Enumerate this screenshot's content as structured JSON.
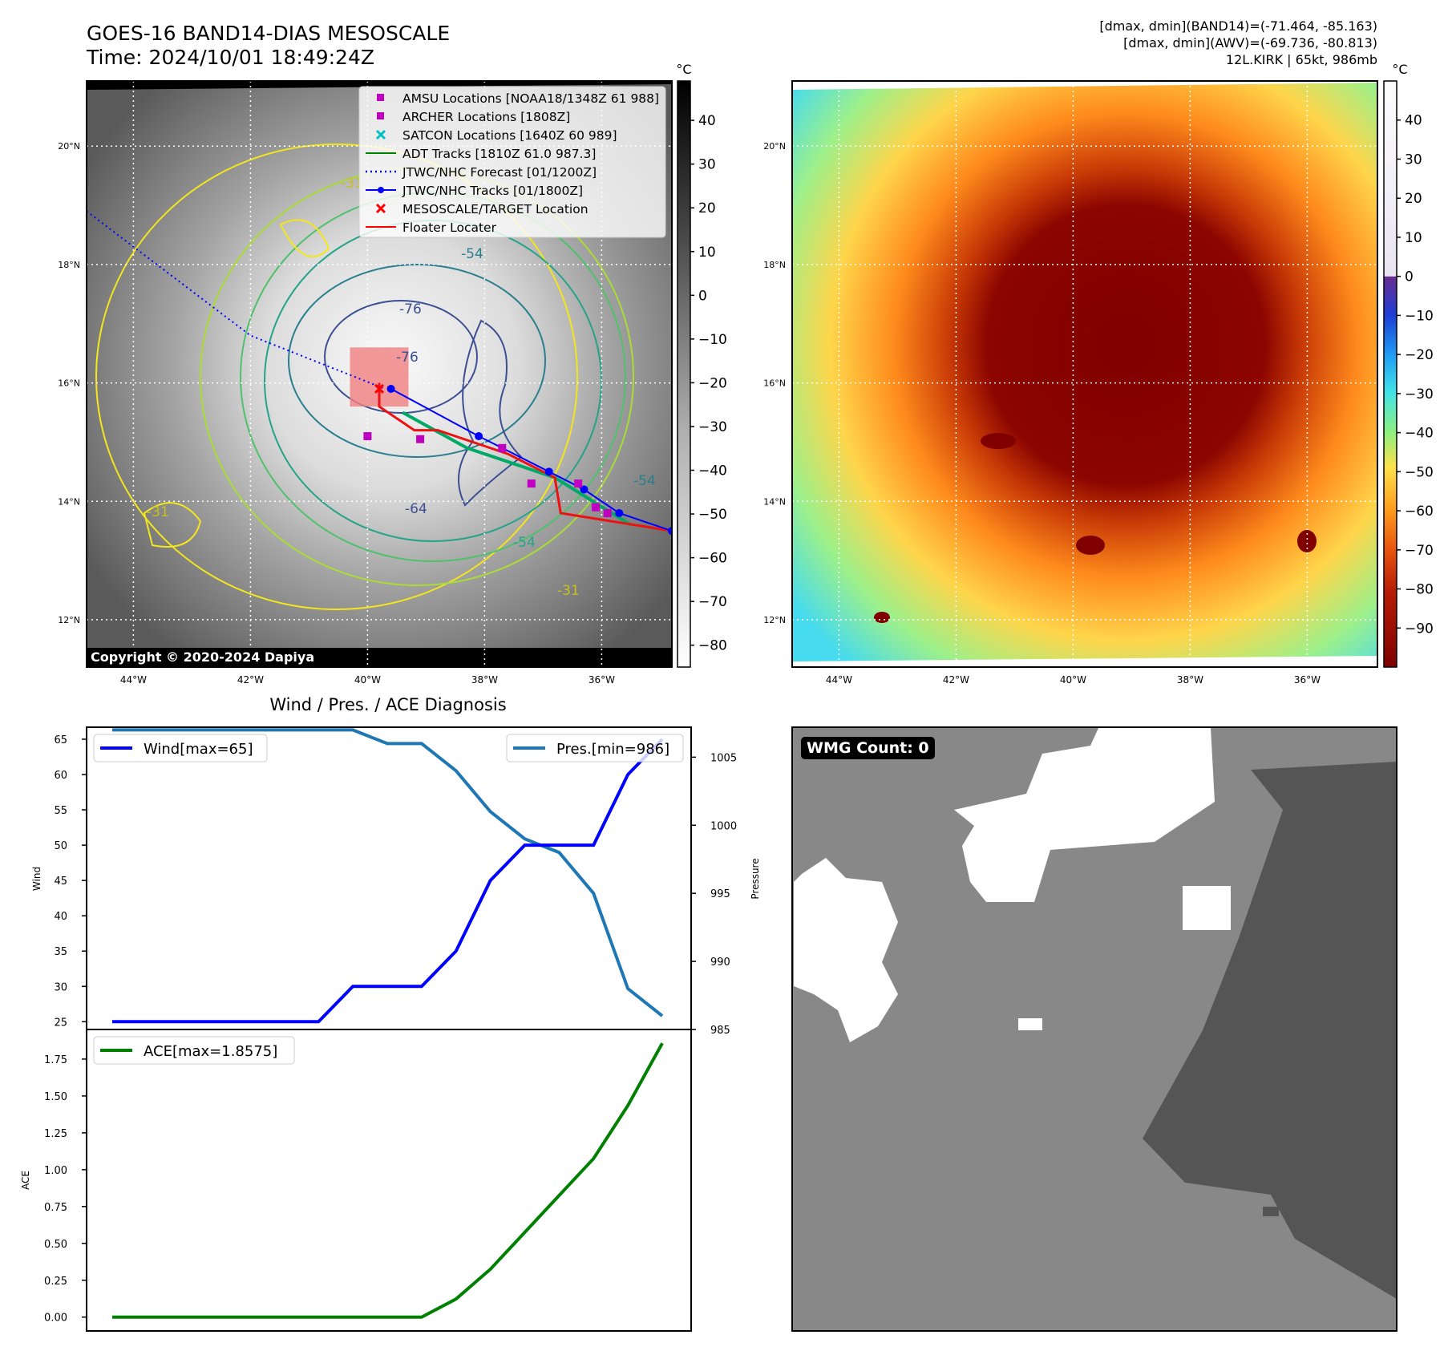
{
  "header": {
    "title": "GOES-16 BAND14-DIAS MESOSCALE",
    "time": "Time: 2024/10/01 18:49:24Z",
    "dmax_band14": "[dmax, dmin](BAND14)=(-71.464, -85.163)",
    "dmax_awv": "[dmax, dmin](AWV)=(-69.736, -80.813)",
    "storm": "12L.KIRK | 65kt, 986mb"
  },
  "copyright": "Copyright © 2020-2024 Dapiya",
  "map": {
    "lat_labels": [
      "20°N",
      "18°N",
      "16°N",
      "14°N",
      "12°N"
    ],
    "lat_values": [
      20,
      18,
      16,
      14,
      12
    ],
    "lon_labels": [
      "44°W",
      "42°W",
      "40°W",
      "38°W",
      "36°W"
    ],
    "lon_values": [
      -44,
      -42,
      -40,
      -38,
      -36
    ],
    "lat_range": [
      11.2,
      21.1
    ],
    "lon_range": [
      -44.8,
      -34.8
    ],
    "contour_labels": [
      "-31",
      "-54",
      "-76",
      "-64",
      "-54",
      "-31",
      "-54",
      "-31",
      "-76"
    ],
    "legend": [
      {
        "label": "AMSU Locations [NOAA18/1348Z 61 988]",
        "color": "#c000c0",
        "marker": "square"
      },
      {
        "label": "ARCHER Locations [1808Z]",
        "color": "#c000c0",
        "marker": "square"
      },
      {
        "label": "SATCON Locations [1640Z 60 989]",
        "color": "#00c0c0",
        "marker": "x"
      },
      {
        "label": "ADT Tracks [1810Z 61.0 987.3]",
        "color": "#008000",
        "marker": "line"
      },
      {
        "label": "JTWC/NHC Forecast [01/1200Z]",
        "color": "#0000ff",
        "marker": "dotted"
      },
      {
        "label": "JTWC/NHC Tracks [01/1800Z]",
        "color": "#0000ff",
        "marker": "line-dot"
      },
      {
        "label": "MESOSCALE/TARGET Location",
        "color": "#ff0000",
        "marker": "x"
      },
      {
        "label": "Floater Locater",
        "color": "#ff0000",
        "marker": "line"
      }
    ],
    "tracks": {
      "jtwc_forecast": [
        [
          -44.8,
          18.9
        ],
        [
          -42,
          16.8
        ],
        [
          -39.7,
          15.9
        ]
      ],
      "jtwc_track": [
        [
          -39.6,
          15.9
        ],
        [
          -38.1,
          15.1
        ],
        [
          -36.9,
          14.5
        ],
        [
          -36.3,
          14.2
        ],
        [
          -35.7,
          13.8
        ],
        [
          -34.8,
          13.5
        ]
      ],
      "floater": [
        [
          -39.8,
          16.0
        ],
        [
          -39.8,
          15.6
        ],
        [
          -39.2,
          15.2
        ],
        [
          -38.8,
          15.2
        ],
        [
          -37.6,
          14.8
        ],
        [
          -36.8,
          14.4
        ],
        [
          -36.7,
          13.8
        ],
        [
          -34.8,
          13.5
        ]
      ],
      "adt": [
        [
          -39.4,
          15.5
        ],
        [
          -38.3,
          14.9
        ],
        [
          -37.4,
          14.6
        ],
        [
          -36.8,
          14.4
        ],
        [
          -35.5,
          13.6
        ]
      ],
      "amsu_archer": [
        [
          -40.0,
          15.1
        ],
        [
          -39.1,
          15.05
        ],
        [
          -37.2,
          14.3
        ],
        [
          -36.4,
          14.3
        ],
        [
          -36.1,
          13.9
        ],
        [
          -35.9,
          13.8
        ],
        [
          -37.7,
          14.9
        ]
      ],
      "mesoscale_target": [
        -39.8,
        15.9
      ],
      "floater_box": {
        "lon": [
          -40.3,
          -39.3
        ],
        "lat": [
          15.6,
          16.6
        ]
      }
    },
    "colorbar_band14": {
      "unit": "°C",
      "ticks": [
        "40",
        "30",
        "20",
        "10",
        "0",
        "−10",
        "−20",
        "−30",
        "−40",
        "−50",
        "−60",
        "−70",
        "−80"
      ],
      "range": [
        -85,
        49
      ]
    },
    "colorbar_awv": {
      "unit": "°C",
      "ticks": [
        "40",
        "30",
        "20",
        "10",
        "0",
        "−10",
        "−20",
        "−30",
        "−40",
        "−50",
        "−60",
        "−70",
        "−80",
        "−90"
      ],
      "range": [
        -100,
        50
      ]
    }
  },
  "chart_data": [
    {
      "type": "line",
      "title": "Wind / Pres. / ACE Diagnosis",
      "ylabel": "Wind",
      "y2label": "Pressure",
      "ylim": [
        23.9,
        66.7
      ],
      "y2lim": [
        985,
        1007.2
      ],
      "yticks": [
        25,
        30,
        35,
        40,
        45,
        50,
        55,
        60,
        65
      ],
      "y2ticks": [
        985,
        990,
        995,
        1000,
        1005
      ],
      "series": [
        {
          "name": "Wind[max=65]",
          "color": "#0000ff",
          "axis": "left",
          "values": [
            25,
            25,
            25,
            25,
            25,
            25,
            25,
            30,
            30,
            30,
            35,
            45,
            50,
            50,
            50,
            60,
            65
          ]
        },
        {
          "name": "Pres.[min=986]",
          "color": "#1f77b4",
          "axis": "right",
          "values": [
            1007,
            1007,
            1007,
            1007,
            1007,
            1007,
            1007,
            1007,
            1006,
            1006,
            1004,
            1001,
            999,
            998,
            995,
            988,
            986
          ]
        }
      ]
    },
    {
      "type": "line",
      "ylabel": "ACE",
      "ylim": [
        -0.094,
        1.951
      ],
      "yticks": [
        "0.00",
        "0.25",
        "0.50",
        "0.75",
        "1.00",
        "1.25",
        "1.50",
        "1.75"
      ],
      "series": [
        {
          "name": "ACE[max=1.8575]",
          "color": "#008000",
          "values": [
            0,
            0,
            0,
            0,
            0,
            0,
            0,
            0,
            0,
            0,
            0.1225,
            0.325,
            0.575,
            0.825,
            1.075,
            1.435,
            1.8575
          ]
        }
      ]
    }
  ],
  "wmg": {
    "label": "WMG Count: 0"
  }
}
